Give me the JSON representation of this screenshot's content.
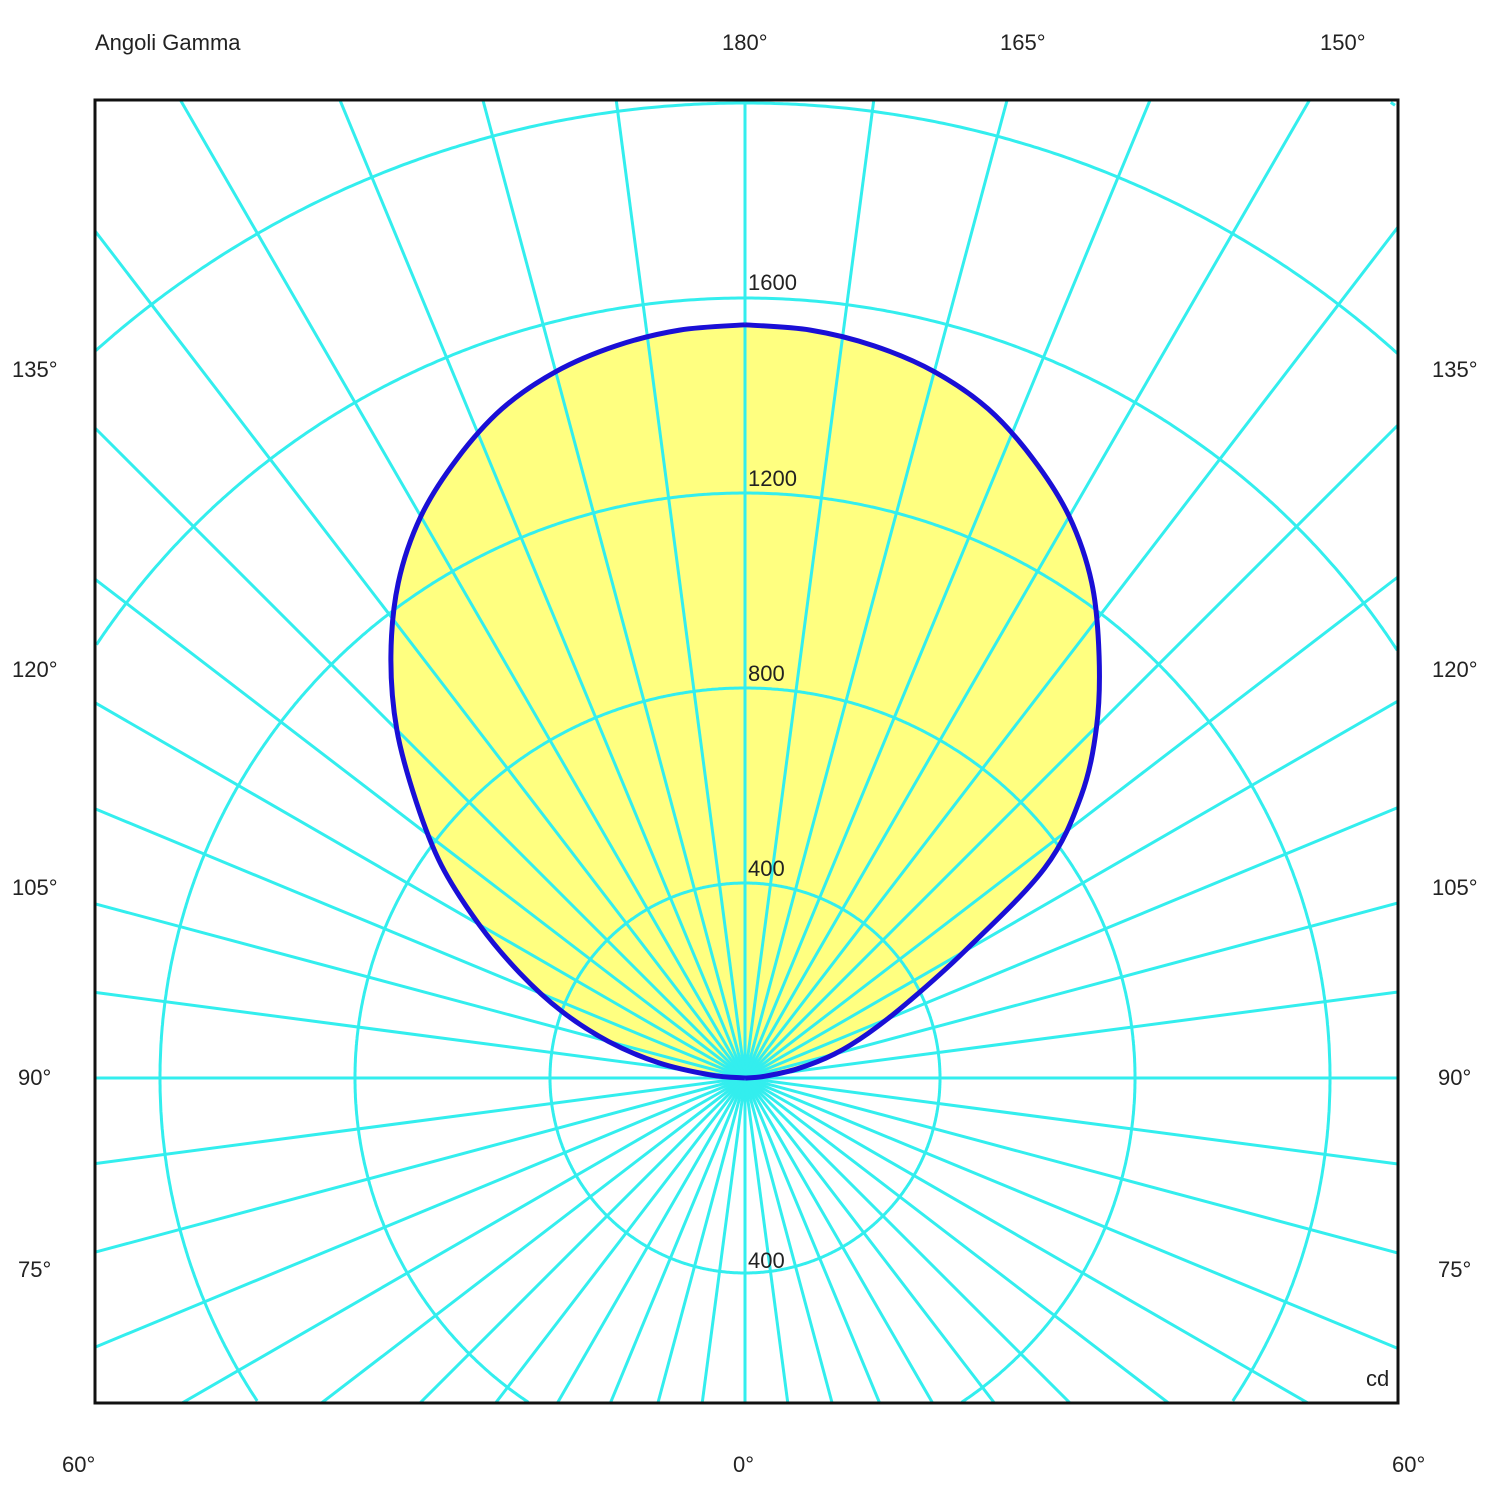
{
  "chart_data": {
    "type": "polar",
    "title": "Angoli Gamma",
    "unit": "cd",
    "radial_ticks": [
      400,
      800,
      1200,
      1600
    ],
    "lower_radial_tick": 400,
    "angle_labels": {
      "top": [
        "180°",
        "165°",
        "150°"
      ],
      "left": [
        "135°",
        "120°",
        "105°",
        "90°",
        "75°"
      ],
      "right": [
        "135°",
        "120°",
        "105°",
        "90°",
        "75°"
      ],
      "bottom": [
        "60°",
        "0°",
        "60°"
      ]
    },
    "grid": true,
    "colors": {
      "grid": "#33eeee",
      "curve": "#1a0fd6",
      "fill": "#ffff80"
    },
    "series": [
      {
        "side": "left",
        "gamma": [
          90,
          95,
          100,
          105,
          110,
          115,
          120,
          125,
          130,
          135,
          140,
          145,
          150,
          155,
          160,
          165,
          170,
          175,
          180
        ],
        "values": [
          0,
          70,
          180,
          290,
          400,
          510,
          630,
          760,
          880,
          1010,
          1130,
          1240,
          1330,
          1400,
          1460,
          1500,
          1525,
          1540,
          1545
        ]
      },
      {
        "side": "right",
        "gamma": [
          90,
          95,
          100,
          105,
          110,
          115,
          120,
          125,
          130,
          135,
          140,
          145,
          150,
          155,
          160,
          165,
          170,
          175,
          180
        ],
        "values": [
          0,
          40,
          110,
          190,
          270,
          370,
          520,
          750,
          900,
          1020,
          1130,
          1240,
          1330,
          1400,
          1460,
          1500,
          1525,
          1540,
          1545
        ]
      }
    ]
  }
}
